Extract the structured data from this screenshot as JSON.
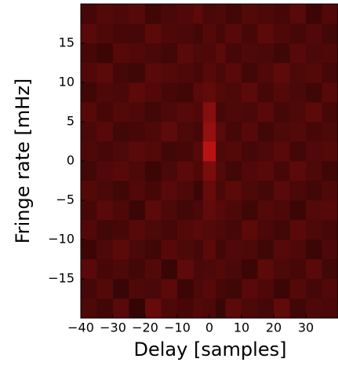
{
  "chart_data": {
    "type": "heatmap",
    "xlabel": "Delay [samples]",
    "ylabel": "Fringe rate [mHz]",
    "xlim": [
      -40,
      40
    ],
    "ylim": [
      -20,
      20
    ],
    "xticks": [
      {
        "value": -40,
        "label": "−40"
      },
      {
        "value": -30,
        "label": "−30"
      },
      {
        "value": -20,
        "label": "−20"
      },
      {
        "value": -10,
        "label": "−10"
      },
      0,
      10,
      20,
      30
    ],
    "yticks": [
      {
        "value": -15,
        "label": "−15"
      },
      {
        "value": -10,
        "label": "−10"
      },
      {
        "value": -5,
        "label": "−5"
      },
      0,
      5,
      10,
      15
    ],
    "xbins": [
      -40,
      -35,
      -30,
      -25,
      -20,
      -15,
      -10,
      -5,
      -2,
      2,
      5,
      10,
      15,
      20,
      25,
      30,
      35,
      40
    ],
    "ybins": [
      -20,
      -17.5,
      -15,
      -12.5,
      -10,
      -7.5,
      -5,
      -2.5,
      0,
      2.5,
      5,
      7.5,
      10,
      12.5,
      15,
      17.5,
      20
    ],
    "zlim": [
      0,
      1
    ],
    "color": "#ff1a1a",
    "values": [
      [
        0.3,
        0.25,
        0.35,
        0.2,
        0.4,
        0.3,
        0.28,
        0.33,
        0.3,
        0.22,
        0.36,
        0.3,
        0.27,
        0.38,
        0.25,
        0.31,
        0.29
      ],
      [
        0.27,
        0.33,
        0.22,
        0.31,
        0.29,
        0.36,
        0.24,
        0.3,
        0.34,
        0.28,
        0.25,
        0.35,
        0.31,
        0.23,
        0.33,
        0.27,
        0.32
      ],
      [
        0.35,
        0.28,
        0.3,
        0.26,
        0.33,
        0.22,
        0.37,
        0.29,
        0.31,
        0.33,
        0.29,
        0.24,
        0.36,
        0.3,
        0.28,
        0.35,
        0.26
      ],
      [
        0.24,
        0.31,
        0.36,
        0.29,
        0.25,
        0.34,
        0.3,
        0.27,
        0.36,
        0.26,
        0.32,
        0.3,
        0.25,
        0.34,
        0.31,
        0.23,
        0.3
      ],
      [
        0.32,
        0.26,
        0.28,
        0.34,
        0.3,
        0.27,
        0.33,
        0.35,
        0.33,
        0.3,
        0.27,
        0.36,
        0.29,
        0.26,
        0.35,
        0.3,
        0.27
      ],
      [
        0.28,
        0.35,
        0.31,
        0.23,
        0.36,
        0.3,
        0.26,
        0.29,
        0.38,
        0.34,
        0.31,
        0.25,
        0.33,
        0.3,
        0.24,
        0.33,
        0.34
      ],
      [
        0.33,
        0.29,
        0.25,
        0.32,
        0.28,
        0.35,
        0.31,
        0.24,
        0.4,
        0.29,
        0.36,
        0.3,
        0.27,
        0.35,
        0.29,
        0.26,
        0.31
      ],
      [
        0.26,
        0.32,
        0.34,
        0.3,
        0.24,
        0.29,
        0.36,
        0.31,
        0.48,
        0.33,
        0.26,
        0.32,
        0.34,
        0.28,
        0.36,
        0.3,
        0.25
      ],
      [
        0.31,
        0.27,
        0.3,
        0.35,
        0.33,
        0.26,
        0.28,
        0.34,
        0.72,
        0.3,
        0.33,
        0.27,
        0.31,
        0.35,
        0.26,
        0.32,
        0.33
      ],
      [
        0.29,
        0.34,
        0.26,
        0.28,
        0.31,
        0.37,
        0.3,
        0.27,
        0.58,
        0.35,
        0.28,
        0.34,
        0.26,
        0.3,
        0.33,
        0.28,
        0.3
      ],
      [
        0.34,
        0.28,
        0.33,
        0.31,
        0.26,
        0.3,
        0.34,
        0.32,
        0.52,
        0.27,
        0.31,
        0.29,
        0.35,
        0.27,
        0.31,
        0.36,
        0.28
      ],
      [
        0.25,
        0.31,
        0.29,
        0.36,
        0.32,
        0.28,
        0.25,
        0.35,
        0.38,
        0.33,
        0.3,
        0.36,
        0.28,
        0.33,
        0.29,
        0.25,
        0.34
      ],
      [
        0.32,
        0.36,
        0.27,
        0.25,
        0.35,
        0.33,
        0.31,
        0.28,
        0.34,
        0.29,
        0.35,
        0.26,
        0.32,
        0.37,
        0.3,
        0.33,
        0.27
      ],
      [
        0.28,
        0.24,
        0.34,
        0.32,
        0.29,
        0.26,
        0.35,
        0.3,
        0.31,
        0.36,
        0.27,
        0.31,
        0.29,
        0.25,
        0.34,
        0.29,
        0.31
      ],
      [
        0.35,
        0.3,
        0.28,
        0.27,
        0.36,
        0.31,
        0.29,
        0.26,
        0.33,
        0.28,
        0.34,
        0.28,
        0.36,
        0.31,
        0.27,
        0.32,
        0.26
      ],
      [
        0.27,
        0.33,
        0.31,
        0.34,
        0.25,
        0.29,
        0.32,
        0.36,
        0.29,
        0.31,
        0.26,
        0.33,
        0.3,
        0.28,
        0.35,
        0.24,
        0.32
      ]
    ]
  }
}
